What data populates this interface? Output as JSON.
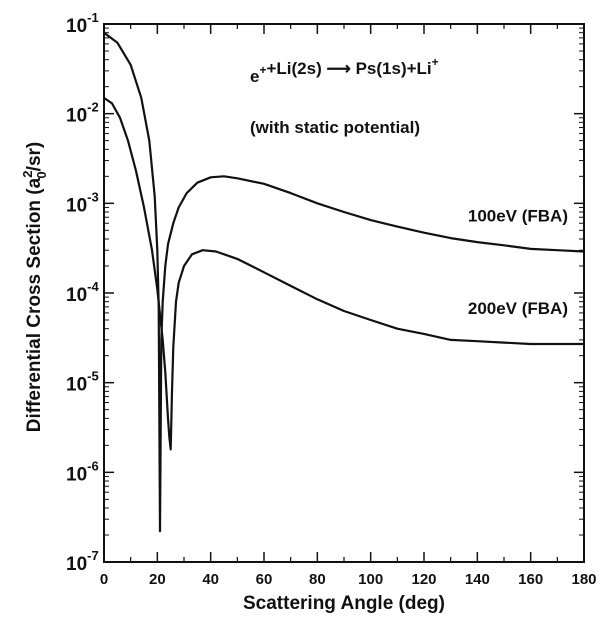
{
  "chart_data": {
    "type": "line",
    "xlabel": "Scattering Angle (deg)",
    "ylabel": {
      "prefix": "Differential Cross Section (a",
      "subscript": "0",
      "superscript": "2",
      "suffix": "/sr)"
    },
    "xlim": [
      0,
      180
    ],
    "ylim": [
      1e-07,
      0.1
    ],
    "yscale": "log",
    "grid": false,
    "x_ticks": [
      "0",
      "20",
      "40",
      "60",
      "80",
      "100",
      "120",
      "140",
      "160",
      "180"
    ],
    "y_ticks": [
      {
        "base": "10",
        "exp": "-1"
      },
      {
        "base": "10",
        "exp": "-2"
      },
      {
        "base": "10",
        "exp": "-3"
      },
      {
        "base": "10",
        "exp": "-4"
      },
      {
        "base": "10",
        "exp": "-5"
      },
      {
        "base": "10",
        "exp": "-6"
      },
      {
        "base": "10",
        "exp": "-7"
      }
    ],
    "annotations": {
      "reaction": {
        "parts": [
          {
            "t": "e"
          },
          {
            "t": "+",
            "sup": true
          },
          {
            "t": "+Li(2s) "
          },
          {
            "t": "⟶",
            "arrow": true
          },
          {
            "t": " Ps(1s)+Li"
          },
          {
            "t": "+",
            "sup": true
          }
        ]
      },
      "note": "(with static potential)"
    },
    "series": [
      {
        "name": "100eV (FBA)",
        "color": "#111111",
        "x": [
          0,
          5,
          10,
          14,
          17,
          19,
          20,
          20.5,
          21,
          21.5,
          22,
          23,
          24,
          26,
          28,
          31,
          35,
          40,
          45,
          50,
          60,
          70,
          80,
          90,
          100,
          110,
          120,
          130,
          140,
          150,
          160,
          170,
          180
        ],
        "y": [
          0.08,
          0.062,
          0.035,
          0.015,
          0.005,
          0.0012,
          0.0003,
          7e-05,
          2.2e-07,
          3e-05,
          8e-05,
          0.0002,
          0.00035,
          0.0006,
          0.0009,
          0.0013,
          0.0017,
          0.00195,
          0.002,
          0.0019,
          0.00165,
          0.0013,
          0.001,
          0.0008,
          0.00065,
          0.00055,
          0.00047,
          0.00041,
          0.00037,
          0.00034,
          0.00031,
          0.0003,
          0.00029
        ]
      },
      {
        "name": "200eV (FBA)",
        "color": "#111111",
        "x": [
          0,
          3,
          6,
          9,
          12,
          15,
          18,
          20,
          22,
          23,
          24,
          24.5,
          25,
          25.5,
          26,
          27,
          28,
          30,
          33,
          37,
          42,
          50,
          60,
          70,
          80,
          90,
          100,
          110,
          120,
          130,
          140,
          150,
          160,
          170,
          180
        ],
        "y": [
          0.015,
          0.013,
          0.009,
          0.005,
          0.0023,
          0.0009,
          0.0003,
          0.00011,
          3e-05,
          1.3e-05,
          4e-06,
          2.5e-06,
          1.8e-06,
          8e-06,
          2.5e-05,
          8e-05,
          0.00013,
          0.0002,
          0.00027,
          0.0003,
          0.00029,
          0.00024,
          0.00017,
          0.00012,
          8.5e-05,
          6.3e-05,
          5e-05,
          4e-05,
          3.5e-05,
          3e-05,
          2.9e-05,
          2.8e-05,
          2.7e-05,
          2.7e-05,
          2.7e-05
        ]
      }
    ]
  }
}
